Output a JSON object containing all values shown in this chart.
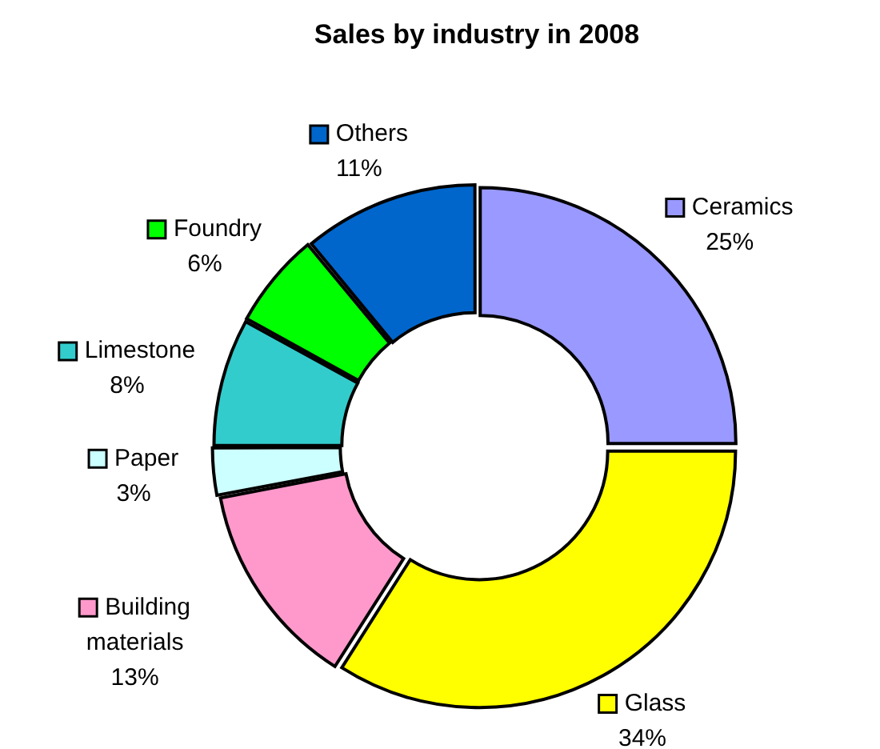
{
  "chart_data": {
    "type": "donut",
    "title": "Sales by industry in 2008",
    "categories": [
      "Ceramics",
      "Glass",
      "Building materials",
      "Paper",
      "Limestone",
      "Foundry",
      "Others"
    ],
    "values": [
      25,
      34,
      13,
      3,
      8,
      6,
      11
    ],
    "colors": [
      "#9999ff",
      "#ffff00",
      "#ff99cc",
      "#ccffff",
      "#33cccc",
      "#00ff00",
      "#0066cc"
    ],
    "value_labels": [
      "25%",
      "34%",
      "13%",
      "3%",
      "8%",
      "6%",
      "11%"
    ],
    "legend": true
  }
}
